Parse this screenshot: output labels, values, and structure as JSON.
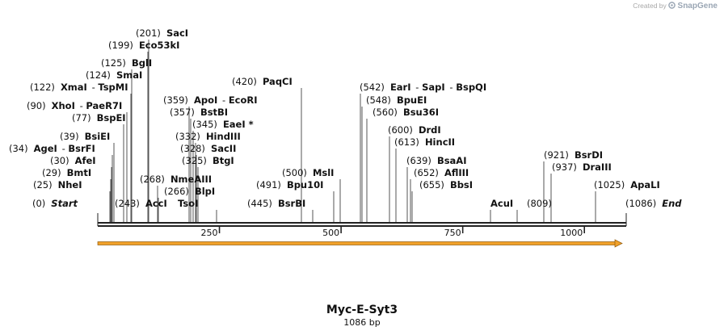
{
  "credit": {
    "prefix": "Created by",
    "brand": "SnapGene"
  },
  "sequence": {
    "name": "Myc-E-Syt3",
    "length_label": "1086 bp",
    "length": 1086
  },
  "ruler": {
    "ticks": [
      "250",
      "500",
      "750",
      "1000"
    ]
  },
  "feature": {
    "color": "#f1a12a",
    "direction": "forward"
  },
  "sites": [
    {
      "pos": "(0)",
      "names": [
        "Start"
      ],
      "end": true
    },
    {
      "pos": "(25)",
      "names": [
        "NheI"
      ]
    },
    {
      "pos": "(29)",
      "names": [
        "BmtI"
      ]
    },
    {
      "pos": "(30)",
      "names": [
        "AfeI"
      ]
    },
    {
      "pos": "(34)",
      "names": [
        "AgeI",
        "BsrFI"
      ]
    },
    {
      "pos": "(39)",
      "names": [
        "BsiEI"
      ]
    },
    {
      "pos": "(77)",
      "names": [
        "BspEI"
      ]
    },
    {
      "pos": "(90)",
      "names": [
        "XhoI",
        "PaeR7I"
      ]
    },
    {
      "pos": "(122)",
      "names": [
        "XmaI",
        "TspMI"
      ]
    },
    {
      "pos": "(124)",
      "names": [
        "SmaI"
      ]
    },
    {
      "pos": "(125)",
      "names": [
        "BglI"
      ]
    },
    {
      "pos": "(199)",
      "names": [
        "Eco53kI"
      ]
    },
    {
      "pos": "(201)",
      "names": [
        "SacI"
      ]
    },
    {
      "pos": "(243)",
      "names": [
        "AccI"
      ]
    },
    {
      "pos": "(268)",
      "names": [
        "NmeAIII"
      ]
    },
    {
      "pos": "(266)",
      "names": [
        "BlpI"
      ]
    },
    {
      "pos": "",
      "names": [
        "TsoI"
      ]
    },
    {
      "pos": "(359)",
      "names": [
        "ApoI",
        "EcoRI"
      ]
    },
    {
      "pos": "(357)",
      "names": [
        "BstBI"
      ]
    },
    {
      "pos": "(345)",
      "names": [
        "EaeI *"
      ]
    },
    {
      "pos": "(332)",
      "names": [
        "HindIII"
      ]
    },
    {
      "pos": "(328)",
      "names": [
        "SacII"
      ]
    },
    {
      "pos": "(325)",
      "names": [
        "BtgI"
      ]
    },
    {
      "pos": "(420)",
      "names": [
        "PaqCI"
      ]
    },
    {
      "pos": "(445)",
      "names": [
        "BsrBI"
      ]
    },
    {
      "pos": "(491)",
      "names": [
        "Bpu10I"
      ]
    },
    {
      "pos": "(500)",
      "names": [
        "MslI"
      ]
    },
    {
      "pos": "(542)",
      "names": [
        "EarI",
        "SapI",
        "BspQI"
      ]
    },
    {
      "pos": "(548)",
      "names": [
        "BpuEI"
      ]
    },
    {
      "pos": "(560)",
      "names": [
        "Bsu36I"
      ]
    },
    {
      "pos": "(600)",
      "names": [
        "DrdI"
      ]
    },
    {
      "pos": "(613)",
      "names": [
        "HincII"
      ]
    },
    {
      "pos": "(639)",
      "names": [
        "BsaAI"
      ]
    },
    {
      "pos": "(652)",
      "names": [
        "AflIII"
      ]
    },
    {
      "pos": "(655)",
      "names": [
        "BbsI"
      ]
    },
    {
      "pos": "",
      "names": [
        "AcuI"
      ]
    },
    {
      "pos": "(809)",
      "names": []
    },
    {
      "pos": "(921)",
      "names": [
        "BsrDI"
      ]
    },
    {
      "pos": "(937)",
      "names": [
        "DraIII"
      ]
    },
    {
      "pos": "(1025)",
      "names": [
        "ApaLI"
      ]
    },
    {
      "pos": "(1086)",
      "names": [
        "End"
      ],
      "end": true
    }
  ]
}
